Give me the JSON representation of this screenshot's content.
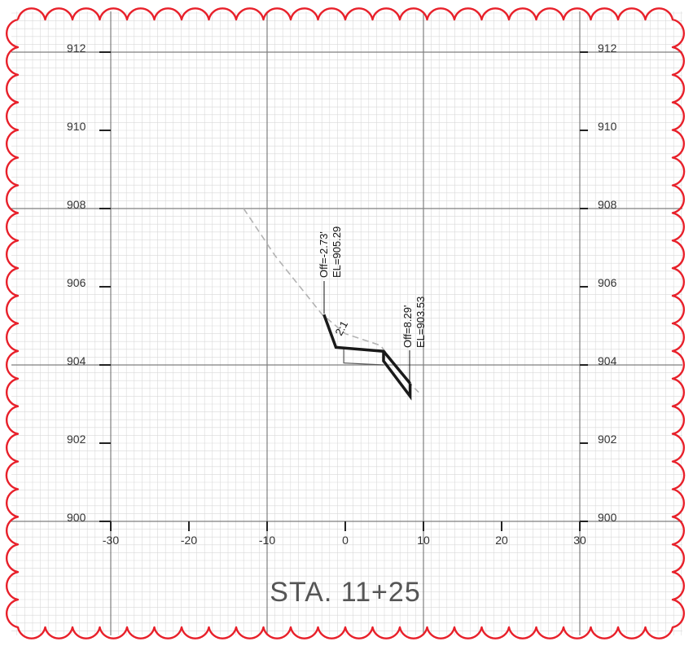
{
  "sheet": {
    "station_label": "STA.  11+25",
    "colors": {
      "grid_minor": "#d9d9d9",
      "grid_major": "#7f7f7f",
      "revision_cloud": "#e8202a",
      "existing_ground": "#b3b3b3",
      "proposed_section": "#1a1a1a"
    },
    "icons": [
      "revision-cloud-icon"
    ]
  },
  "axes": {
    "elevation_labels_left": [
      "912",
      "910",
      "908",
      "906",
      "904",
      "902",
      "900"
    ],
    "elevation_labels_right": [
      "912",
      "910",
      "908",
      "906",
      "904",
      "902",
      "900"
    ],
    "offset_labels": [
      "-30",
      "-20",
      "-10",
      "0",
      "10",
      "20",
      "30"
    ]
  },
  "callouts": {
    "left": {
      "off": "Off=-2.73'",
      "el": "EL=905.29"
    },
    "right": {
      "off": "Off=8.29'",
      "el": "EL=903.53"
    },
    "slope": "2:1"
  },
  "section_data": {
    "x_range": [
      -30,
      30
    ],
    "y_range": [
      900,
      912
    ],
    "existing_ground": [
      {
        "offset": -13,
        "elevation": 908.0
      },
      {
        "offset": -9,
        "elevation": 906.8
      },
      {
        "offset": -3,
        "elevation": 905.3
      },
      {
        "offset": 0,
        "elevation": 904.8
      },
      {
        "offset": 4.5,
        "elevation": 904.5
      },
      {
        "offset": 8.4,
        "elevation": 903.5
      },
      {
        "offset": 9.4,
        "elevation": 903.3
      }
    ],
    "proposed_top": [
      {
        "offset": -2.73,
        "elevation": 905.29
      },
      {
        "offset": -1.2,
        "elevation": 904.45
      },
      {
        "offset": 4.9,
        "elevation": 904.35
      },
      {
        "offset": 8.29,
        "elevation": 903.53
      }
    ],
    "proposed_bottom": [
      {
        "offset": 4.9,
        "elevation": 904.35
      },
      {
        "offset": 4.9,
        "elevation": 904.1
      },
      {
        "offset": 8.29,
        "elevation": 903.2
      },
      {
        "offset": 8.29,
        "elevation": 903.53
      }
    ],
    "proposed_thin": [
      {
        "offset": -0.2,
        "elevation": 904.4
      },
      {
        "offset": -0.2,
        "elevation": 904.05
      },
      {
        "offset": 4.9,
        "elevation": 904.0
      }
    ]
  }
}
